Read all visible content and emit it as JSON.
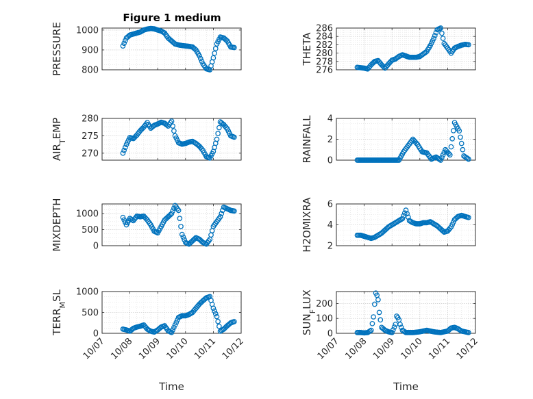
{
  "figure": {
    "title": "Figure 1 medium",
    "marker_color": "#0072bd",
    "marker": "o"
  },
  "chart_data": [
    {
      "type": "scatter",
      "ylabel": "PRESSURE",
      "ylim": [
        800,
        1010
      ],
      "yticks": [
        800,
        900,
        1000
      ],
      "xlabel": "",
      "grid": true,
      "show_x_ticks": false,
      "x": [
        "10/07 18:00",
        "10/07 21:00",
        "10/08 00:00",
        "10/08 03:00",
        "10/08 06:00",
        "10/08 09:00",
        "10/08 12:00",
        "10/08 15:00",
        "10/08 18:00",
        "10/08 21:00",
        "10/09 00:00",
        "10/09 03:00",
        "10/09 06:00",
        "10/09 09:00",
        "10/09 12:00",
        "10/09 15:00",
        "10/09 18:00",
        "10/09 21:00",
        "10/10 00:00",
        "10/10 03:00",
        "10/10 06:00",
        "10/10 09:00",
        "10/10 12:00",
        "10/10 15:00",
        "10/10 18:00",
        "10/10 21:00",
        "10/11 00:00",
        "10/11 03:00",
        "10/11 06:00",
        "10/11 09:00",
        "10/11 12:00",
        "10/11 15:00",
        "10/11 18:00"
      ],
      "y": [
        920,
        960,
        975,
        980,
        985,
        990,
        1000,
        1005,
        1008,
        1006,
        1000,
        995,
        985,
        960,
        945,
        930,
        925,
        922,
        920,
        918,
        915,
        900,
        870,
        830,
        805,
        800,
        860,
        930,
        965,
        960,
        945,
        915,
        912
      ]
    },
    {
      "type": "scatter",
      "ylabel": "THETA",
      "ylim": [
        276,
        286
      ],
      "yticks": [
        276,
        278,
        280,
        282,
        284,
        286
      ],
      "xlabel": "",
      "grid": true,
      "show_x_ticks": false,
      "x": [
        "10/07 18:00",
        "10/07 21:00",
        "10/08 00:00",
        "10/08 03:00",
        "10/08 06:00",
        "10/08 09:00",
        "10/08 12:00",
        "10/08 15:00",
        "10/08 18:00",
        "10/08 21:00",
        "10/09 00:00",
        "10/09 03:00",
        "10/09 06:00",
        "10/09 09:00",
        "10/09 12:00",
        "10/09 15:00",
        "10/09 18:00",
        "10/09 21:00",
        "10/10 00:00",
        "10/10 03:00",
        "10/10 06:00",
        "10/10 09:00",
        "10/10 12:00",
        "10/10 15:00",
        "10/10 18:00",
        "10/10 21:00",
        "10/11 00:00",
        "10/11 03:00",
        "10/11 06:00",
        "10/11 09:00",
        "10/11 12:00",
        "10/11 15:00",
        "10/11 18:00"
      ],
      "y": [
        276.6,
        276.5,
        276.4,
        276.2,
        277.2,
        278.0,
        278.2,
        277.2,
        276.4,
        277.4,
        278.3,
        278.6,
        279.2,
        279.6,
        279.3,
        279.0,
        279.0,
        279.0,
        279.2,
        279.8,
        280.4,
        281.8,
        283.5,
        285.6,
        286.0,
        282.3,
        281.2,
        280.0,
        281.2,
        281.6,
        281.9,
        282.1,
        282.0
      ]
    },
    {
      "type": "scatter",
      "ylabel": "AIR_TEMP",
      "ylim": [
        268,
        280
      ],
      "yticks": [
        270,
        275,
        280
      ],
      "xlabel": "",
      "grid": true,
      "show_x_ticks": false,
      "x": [
        "10/07 18:00",
        "10/07 21:00",
        "10/08 00:00",
        "10/08 03:00",
        "10/08 06:00",
        "10/08 09:00",
        "10/08 12:00",
        "10/08 15:00",
        "10/08 18:00",
        "10/08 21:00",
        "10/09 00:00",
        "10/09 03:00",
        "10/09 06:00",
        "10/09 09:00",
        "10/09 12:00",
        "10/09 15:00",
        "10/09 18:00",
        "10/09 21:00",
        "10/10 00:00",
        "10/10 03:00",
        "10/10 06:00",
        "10/10 09:00",
        "10/10 12:00",
        "10/10 15:00",
        "10/10 18:00",
        "10/10 21:00",
        "10/11 00:00",
        "10/11 03:00",
        "10/11 06:00",
        "10/11 09:00",
        "10/11 12:00",
        "10/11 15:00",
        "10/11 18:00"
      ],
      "y": [
        270.0,
        272.5,
        274.5,
        274.2,
        275.2,
        276.5,
        277.5,
        278.8,
        277.2,
        278.0,
        278.4,
        278.9,
        278.6,
        277.8,
        279.2,
        275.0,
        273.0,
        272.6,
        272.8,
        273.2,
        273.4,
        272.8,
        272.0,
        270.8,
        269.0,
        268.6,
        270.5,
        274.0,
        279.0,
        278.2,
        277.0,
        275.0,
        274.6
      ]
    },
    {
      "type": "scatter",
      "ylabel": "RAINFALL",
      "ylim": [
        0,
        4
      ],
      "yticks": [
        0,
        2,
        4
      ],
      "xlabel": "",
      "grid": true,
      "show_x_ticks": false,
      "x": [
        "10/07 18:00",
        "10/07 22:00",
        "10/08 02:00",
        "10/08 06:00",
        "10/08 10:00",
        "10/08 14:00",
        "10/08 18:00",
        "10/08 22:00",
        "10/09 02:00",
        "10/09 06:00",
        "10/09 10:00",
        "10/09 14:00",
        "10/09 18:00",
        "10/09 22:00",
        "10/10 02:00",
        "10/10 06:00",
        "10/10 10:00",
        "10/10 14:00",
        "10/10 18:00",
        "10/10 22:00",
        "10/11 02:00",
        "10/11 06:00",
        "10/11 10:00",
        "10/11 14:00",
        "10/11 18:00"
      ],
      "y": [
        0,
        0,
        0,
        0,
        0,
        0,
        0,
        0,
        0,
        0,
        0.8,
        1.4,
        2.0,
        1.5,
        0.8,
        0.7,
        0.1,
        0.3,
        0,
        1.0,
        0.5,
        3.6,
        2.8,
        0.4,
        0.1
      ]
    },
    {
      "type": "scatter",
      "ylabel": "MIXDEPTH",
      "ylim": [
        0,
        1300
      ],
      "yticks": [
        0,
        500,
        1000
      ],
      "xlabel": "",
      "grid": true,
      "show_x_ticks": false,
      "x": [
        "10/07 18:00",
        "10/07 21:00",
        "10/08 00:00",
        "10/08 03:00",
        "10/08 06:00",
        "10/08 09:00",
        "10/08 12:00",
        "10/08 15:00",
        "10/08 18:00",
        "10/08 21:00",
        "10/09 00:00",
        "10/09 03:00",
        "10/09 06:00",
        "10/09 09:00",
        "10/09 12:00",
        "10/09 15:00",
        "10/09 18:00",
        "10/09 21:00",
        "10/10 00:00",
        "10/10 03:00",
        "10/10 06:00",
        "10/10 09:00",
        "10/10 12:00",
        "10/10 15:00",
        "10/10 18:00",
        "10/10 21:00",
        "10/11 00:00",
        "10/11 03:00",
        "10/11 06:00",
        "10/11 09:00",
        "10/11 12:00",
        "10/11 15:00",
        "10/11 18:00"
      ],
      "y": [
        880,
        650,
        850,
        780,
        920,
        900,
        920,
        800,
        650,
        450,
        400,
        600,
        800,
        900,
        1000,
        1250,
        1100,
        350,
        100,
        50,
        150,
        250,
        200,
        100,
        50,
        200,
        600,
        750,
        900,
        1200,
        1150,
        1100,
        1080
      ]
    },
    {
      "type": "scatter",
      "ylabel": "H2OMIXRA",
      "ylim": [
        2,
        6
      ],
      "yticks": [
        2,
        4,
        6
      ],
      "xlabel": "",
      "grid": true,
      "show_x_ticks": false,
      "x": [
        "10/07 18:00",
        "10/07 21:00",
        "10/08 00:00",
        "10/08 03:00",
        "10/08 06:00",
        "10/08 09:00",
        "10/08 12:00",
        "10/08 15:00",
        "10/08 18:00",
        "10/08 21:00",
        "10/09 00:00",
        "10/09 03:00",
        "10/09 06:00",
        "10/09 09:00",
        "10/09 12:00",
        "10/09 15:00",
        "10/09 18:00",
        "10/09 21:00",
        "10/10 00:00",
        "10/10 03:00",
        "10/10 06:00",
        "10/10 09:00",
        "10/10 12:00",
        "10/10 15:00",
        "10/10 18:00",
        "10/10 21:00",
        "10/11 00:00",
        "10/11 03:00",
        "10/11 06:00",
        "10/11 09:00",
        "10/11 12:00",
        "10/11 15:00",
        "10/11 18:00"
      ],
      "y": [
        3.0,
        3.0,
        2.9,
        2.8,
        2.7,
        2.8,
        3.0,
        3.2,
        3.5,
        3.8,
        4.0,
        4.2,
        4.4,
        4.6,
        5.4,
        4.4,
        4.2,
        4.1,
        4.1,
        4.2,
        4.2,
        4.3,
        4.1,
        3.9,
        3.6,
        3.3,
        3.4,
        3.8,
        4.5,
        4.8,
        4.9,
        4.8,
        4.7
      ]
    },
    {
      "type": "scatter",
      "ylabel": "TERR_MSL",
      "ylim": [
        0,
        1000
      ],
      "yticks": [
        0,
        500,
        1000
      ],
      "xlabel": "Time",
      "grid": true,
      "show_x_ticks": true,
      "x": [
        "10/07 18:00",
        "10/07 21:00",
        "10/08 00:00",
        "10/08 03:00",
        "10/08 06:00",
        "10/08 09:00",
        "10/08 12:00",
        "10/08 15:00",
        "10/08 18:00",
        "10/08 21:00",
        "10/09 00:00",
        "10/09 03:00",
        "10/09 06:00",
        "10/09 09:00",
        "10/09 12:00",
        "10/09 15:00",
        "10/09 18:00",
        "10/09 21:00",
        "10/10 00:00",
        "10/10 03:00",
        "10/10 06:00",
        "10/10 09:00",
        "10/10 12:00",
        "10/10 15:00",
        "10/10 18:00",
        "10/10 21:00",
        "10/11 00:00",
        "10/11 03:00",
        "10/11 06:00",
        "10/11 09:00",
        "10/11 12:00",
        "10/11 15:00",
        "10/11 18:00"
      ],
      "y": [
        100,
        80,
        50,
        120,
        150,
        170,
        200,
        100,
        50,
        30,
        80,
        150,
        180,
        60,
        20,
        200,
        380,
        420,
        420,
        450,
        500,
        600,
        700,
        780,
        850,
        880,
        600,
        400,
        50,
        100,
        180,
        250,
        280
      ]
    },
    {
      "type": "scatter",
      "ylabel": "SUN_FLUX",
      "ylim": [
        0,
        280
      ],
      "yticks": [
        0,
        100,
        200
      ],
      "xlabel": "Time",
      "grid": true,
      "show_x_ticks": true,
      "x": [
        "10/07 18:00",
        "10/07 21:00",
        "10/08 00:00",
        "10/08 03:00",
        "10/08 06:00",
        "10/08 08:00",
        "10/08 09:00",
        "10/08 10:00",
        "10/08 11:00",
        "10/08 12:00",
        "10/08 13:00",
        "10/08 15:00",
        "10/08 18:00",
        "10/08 21:00",
        "10/09 00:00",
        "10/09 03:00",
        "10/09 04:00",
        "10/09 05:00",
        "10/09 06:00",
        "10/09 07:00",
        "10/09 09:00",
        "10/09 12:00",
        "10/09 18:00",
        "10/10 00:00",
        "10/10 06:00",
        "10/10 09:00",
        "10/10 12:00",
        "10/10 18:00",
        "10/11 00:00",
        "10/11 03:00",
        "10/11 06:00",
        "10/11 09:00",
        "10/11 12:00",
        "10/11 18:00"
      ],
      "y": [
        5,
        5,
        3,
        5,
        20,
        110,
        195,
        270,
        255,
        225,
        140,
        40,
        20,
        10,
        5,
        60,
        115,
        105,
        90,
        60,
        20,
        5,
        5,
        10,
        20,
        15,
        10,
        5,
        15,
        35,
        40,
        30,
        15,
        5
      ]
    }
  ],
  "x_axis": {
    "start": "10/07 00:00",
    "end": "10/12 00:00",
    "tick_labels": [
      "10/07",
      "10/08",
      "10/09",
      "10/10",
      "10/11",
      "10/12"
    ]
  }
}
